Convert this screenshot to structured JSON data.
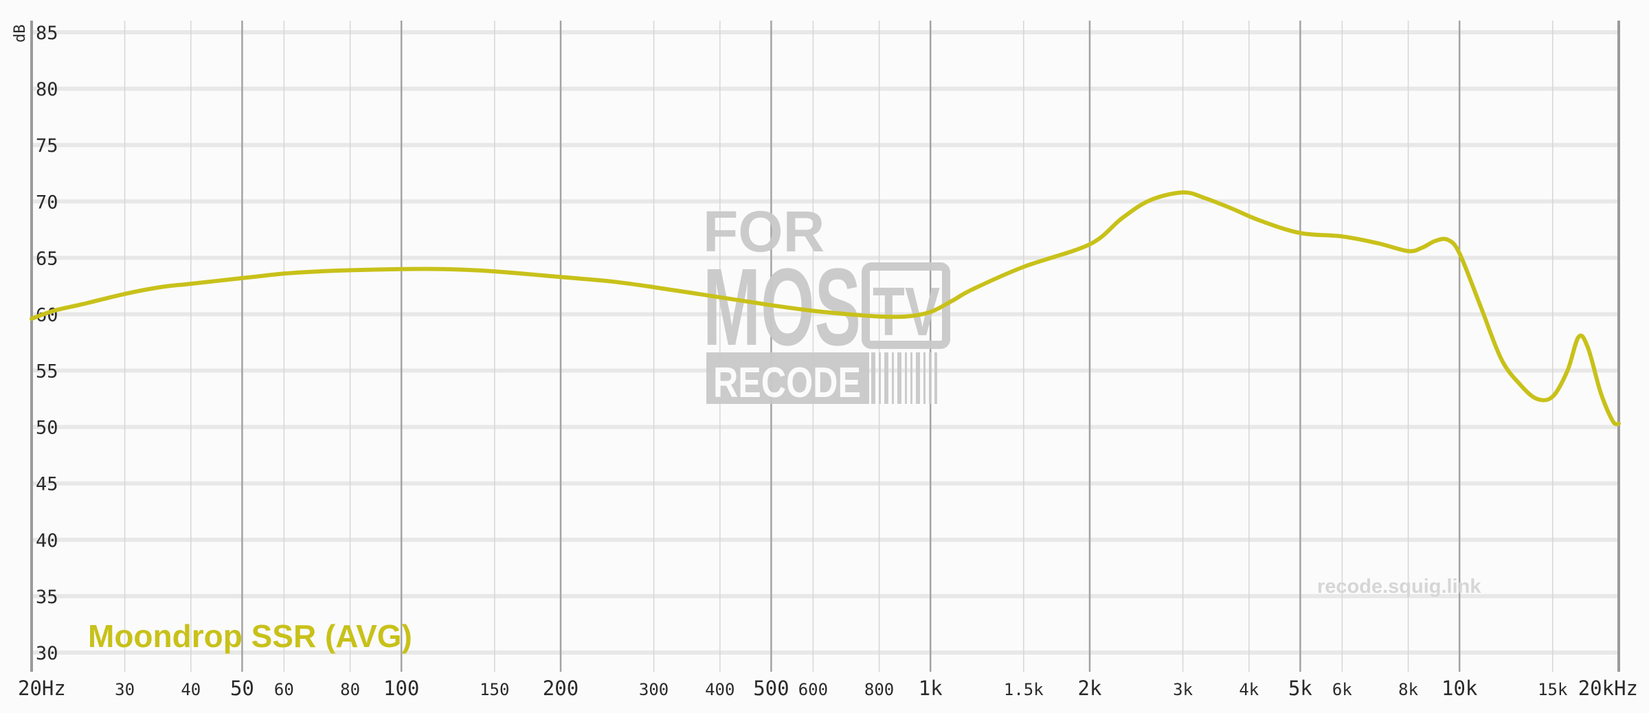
{
  "chart_data": {
    "type": "line",
    "xscale": "log",
    "xlim": [
      20,
      20000
    ],
    "ylim": [
      30,
      85
    ],
    "ylabel": "dB",
    "grid": true,
    "y_ticks": [
      85,
      80,
      75,
      70,
      65,
      60,
      55,
      50,
      45,
      40,
      35,
      30
    ],
    "x_ticks": [
      {
        "value": 20,
        "label": "20Hz",
        "major": true
      },
      {
        "value": 30,
        "label": "30",
        "major": false
      },
      {
        "value": 40,
        "label": "40",
        "major": false
      },
      {
        "value": 50,
        "label": "50",
        "major": true
      },
      {
        "value": 60,
        "label": "60",
        "major": false
      },
      {
        "value": 80,
        "label": "80",
        "major": false
      },
      {
        "value": 100,
        "label": "100",
        "major": true
      },
      {
        "value": 150,
        "label": "150",
        "major": false
      },
      {
        "value": 200,
        "label": "200",
        "major": true
      },
      {
        "value": 300,
        "label": "300",
        "major": false
      },
      {
        "value": 400,
        "label": "400",
        "major": false
      },
      {
        "value": 500,
        "label": "500",
        "major": true
      },
      {
        "value": 600,
        "label": "600",
        "major": false
      },
      {
        "value": 800,
        "label": "800",
        "major": false
      },
      {
        "value": 1000,
        "label": "1k",
        "major": true
      },
      {
        "value": 1500,
        "label": "1.5k",
        "major": false
      },
      {
        "value": 2000,
        "label": "2k",
        "major": true
      },
      {
        "value": 3000,
        "label": "3k",
        "major": false
      },
      {
        "value": 4000,
        "label": "4k",
        "major": false
      },
      {
        "value": 5000,
        "label": "5k",
        "major": true
      },
      {
        "value": 6000,
        "label": "6k",
        "major": false
      },
      {
        "value": 8000,
        "label": "8k",
        "major": false
      },
      {
        "value": 10000,
        "label": "10k",
        "major": true
      },
      {
        "value": 15000,
        "label": "15k",
        "major": false
      },
      {
        "value": 20000,
        "label": "20kHz",
        "major": true
      }
    ],
    "series": [
      {
        "name": "Moondrop SSR (AVG)",
        "color": "#c8c11a",
        "x": [
          20,
          22,
          25,
          30,
          35,
          40,
          50,
          60,
          70,
          80,
          100,
          120,
          150,
          200,
          250,
          300,
          400,
          500,
          600,
          700,
          800,
          900,
          1000,
          1100,
          1200,
          1500,
          2000,
          2300,
          2600,
          3000,
          3300,
          3700,
          4200,
          5000,
          6000,
          7000,
          8000,
          8500,
          9000,
          9500,
          10000,
          11000,
          12000,
          13000,
          14000,
          15000,
          16000,
          16800,
          17500,
          18500,
          19500,
          20000
        ],
        "y": [
          59.6,
          60.3,
          60.9,
          61.8,
          62.4,
          62.7,
          63.2,
          63.6,
          63.8,
          63.9,
          64.0,
          64.0,
          63.8,
          63.3,
          62.9,
          62.4,
          61.5,
          60.8,
          60.3,
          60.0,
          59.8,
          59.8,
          60.2,
          61.2,
          62.2,
          64.2,
          66.2,
          68.5,
          70.1,
          70.8,
          70.3,
          69.4,
          68.3,
          67.2,
          66.9,
          66.3,
          65.6,
          65.9,
          66.5,
          66.6,
          65.4,
          60.5,
          56.0,
          53.8,
          52.5,
          52.7,
          55.0,
          58.0,
          57.0,
          53.0,
          50.5,
          50.3
        ]
      }
    ],
    "annotations": [
      "recode.squig.link"
    ]
  },
  "watermark": {
    "line1": "FOR",
    "line2": "MOS",
    "badge": "TV",
    "line3": "RECODE"
  }
}
